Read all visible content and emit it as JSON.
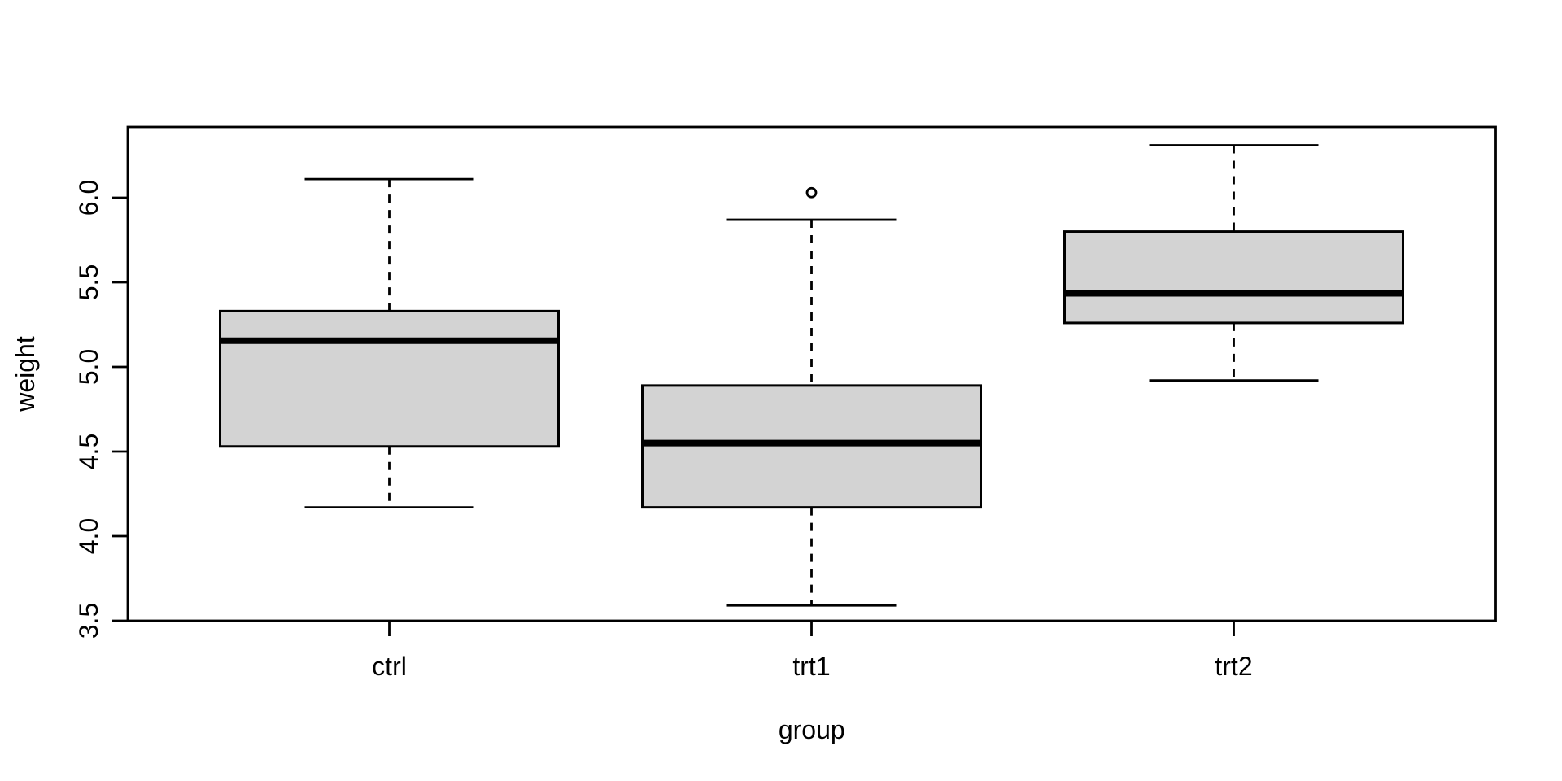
{
  "chart_data": {
    "type": "boxplot",
    "title": "",
    "xlabel": "group",
    "ylabel": "weight",
    "categories": [
      "ctrl",
      "trt1",
      "trt2"
    ],
    "y_ticks": [
      "3.5",
      "4.0",
      "4.5",
      "5.0",
      "5.5",
      "6.0"
    ],
    "ylim": [
      3.48,
      6.42
    ],
    "grid": false,
    "legend": false,
    "groups": [
      {
        "name": "ctrl",
        "whisker_low": 4.17,
        "q1": 4.53,
        "median": 5.155,
        "q3": 5.33,
        "whisker_high": 6.11,
        "outliers": []
      },
      {
        "name": "trt1",
        "whisker_low": 3.59,
        "q1": 4.17,
        "median": 4.55,
        "q3": 4.89,
        "whisker_high": 5.87,
        "outliers": [
          6.03
        ]
      },
      {
        "name": "trt2",
        "whisker_low": 4.92,
        "q1": 5.26,
        "median": 5.435,
        "q3": 5.8,
        "whisker_high": 6.31,
        "outliers": []
      }
    ],
    "colors": {
      "box_fill": "#D3D3D3",
      "stroke": "#000000",
      "background": "#FFFFFF"
    }
  }
}
